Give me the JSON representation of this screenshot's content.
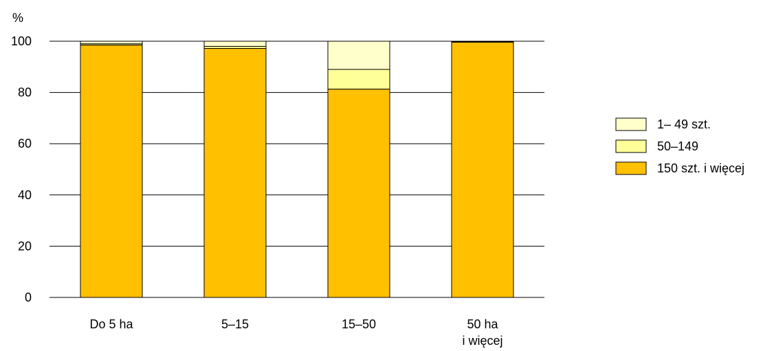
{
  "chart_data": {
    "type": "bar",
    "stacked": true,
    "title": "",
    "xlabel": "",
    "ylabel": "%",
    "ylim": [
      0,
      100
    ],
    "yticks": [
      0,
      20,
      40,
      60,
      80,
      100
    ],
    "grid": true,
    "legend_position": "right",
    "categories": [
      [
        "Do 5 ha"
      ],
      [
        "5–15"
      ],
      [
        "15–50"
      ],
      [
        "50 ha",
        "i więcej"
      ]
    ],
    "series": [
      {
        "name": "150 szt. i więcej",
        "color": "#FFC000",
        "values": [
          98.5,
          97.2,
          81.3,
          99.6
        ]
      },
      {
        "name": "50–149",
        "color": "#FFFF99",
        "values": [
          0.5,
          0.8,
          7.7,
          0.2
        ]
      },
      {
        "name": "1– 49 szt.",
        "color": "#FFFFCC",
        "values": [
          1.0,
          2.0,
          11.0,
          0.2
        ]
      }
    ],
    "legend_order": [
      2,
      1,
      0
    ]
  }
}
